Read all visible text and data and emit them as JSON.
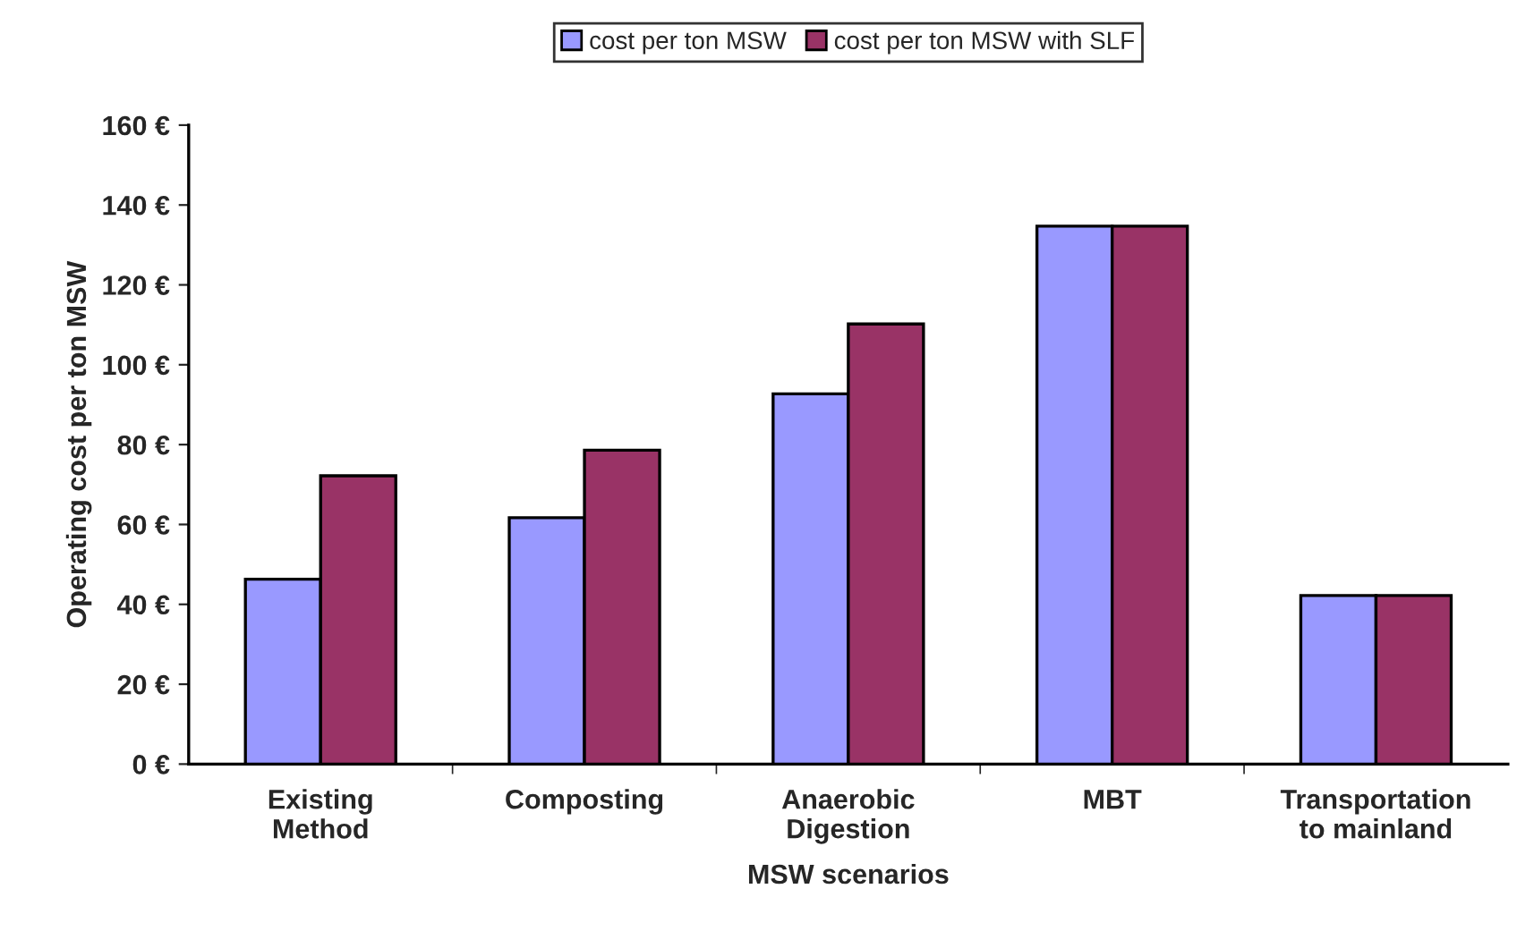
{
  "chart_data": {
    "type": "bar",
    "xlabel": "MSW scenarios",
    "ylabel": "Operating cost per ton MSW",
    "categories": [
      "Existing\nMethod",
      "Composting",
      "Anaerobic\nDigestion",
      "MBT",
      "Transportation\nto mainland"
    ],
    "series": [
      {
        "name": "cost per ton MSW",
        "color": "#9999ff",
        "values": [
          46.3,
          61.7,
          92.7,
          134.7,
          42.2
        ]
      },
      {
        "name": "cost per ton MSW with SLF",
        "color": "#993366",
        "values": [
          72.2,
          78.6,
          110.2,
          134.7,
          42.2
        ]
      }
    ],
    "ylim": [
      0,
      160
    ],
    "yticks": [
      {
        "value": 0,
        "label": "0 €"
      },
      {
        "value": 20,
        "label": "20 €"
      },
      {
        "value": 40,
        "label": "40 €"
      },
      {
        "value": 60,
        "label": "60 €"
      },
      {
        "value": 80,
        "label": "80 €"
      },
      {
        "value": 100,
        "label": "100 €"
      },
      {
        "value": 120,
        "label": "120 €"
      },
      {
        "value": 140,
        "label": "140 €"
      },
      {
        "value": 160,
        "label": "160 €"
      }
    ],
    "grid": false,
    "legend": "top"
  }
}
